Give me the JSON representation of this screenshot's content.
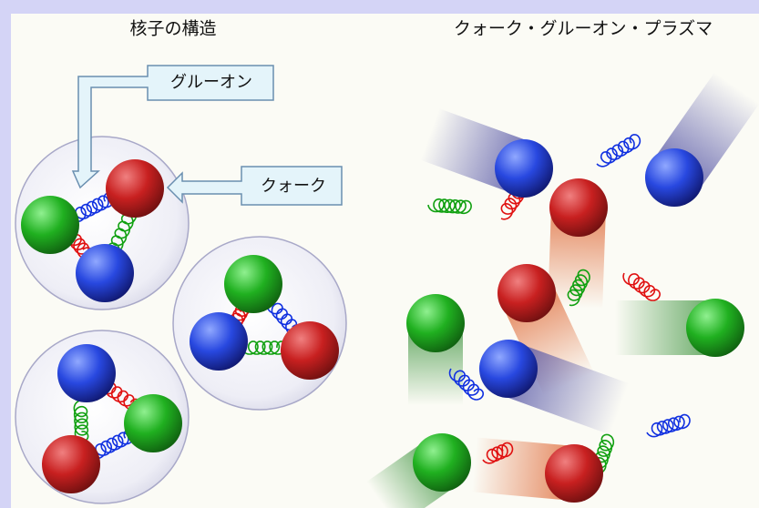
{
  "left_title": "核子の構造",
  "right_title": "クォーク・グルーオン・プラズマ",
  "callouts": [
    {
      "label": "グルーオン"
    },
    {
      "label": "クォーク"
    }
  ]
}
